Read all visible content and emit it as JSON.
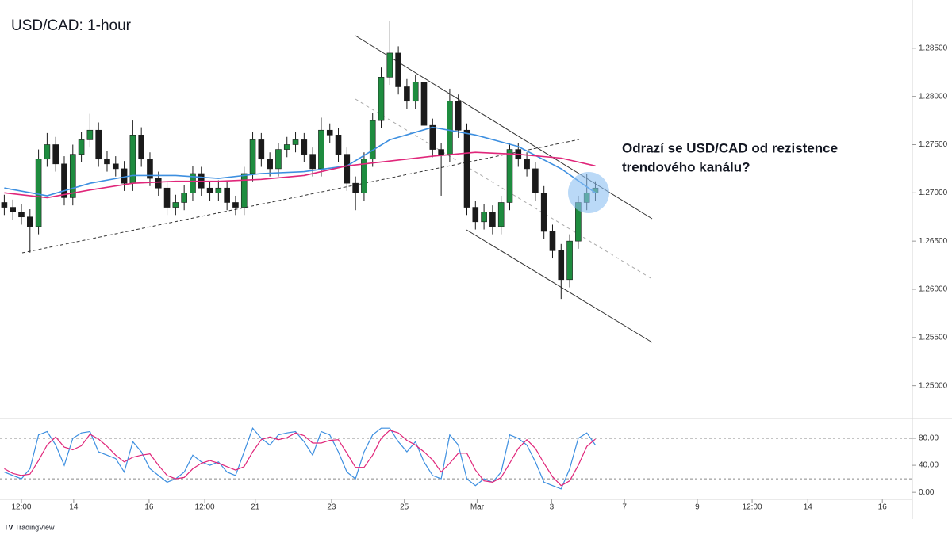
{
  "chart_data": {
    "type": "candlestick",
    "title": "USD/CAD: 1-hour",
    "annotation": [
      "Odrazí se USD/CAD od rezistence",
      "trendového kanálu?"
    ],
    "branding": "TradingView",
    "up_color": "#1e8c3f",
    "down_color": "#1a1a1a",
    "open": [
      1.269,
      1.2685,
      1.268,
      1.2675,
      1.2665,
      1.2735,
      1.275,
      1.273,
      1.2695,
      1.274,
      1.2755,
      1.2765,
      1.2735,
      1.273,
      1.2725,
      1.271,
      1.276,
      1.2735,
      1.2715,
      1.2705,
      1.2685,
      1.269,
      1.27,
      1.272,
      1.2705,
      1.27,
      1.2705,
      1.269,
      1.2685,
      1.272,
      1.2755,
      1.2735,
      1.2725,
      1.2745,
      1.275,
      1.2755,
      1.274,
      1.2725,
      1.2765,
      1.276,
      1.274,
      1.271,
      1.27,
      1.2735,
      1.2775,
      1.282,
      1.2845,
      1.281,
      1.2795,
      1.2815,
      1.277,
      1.2745,
      1.274,
      1.2795,
      1.2765,
      1.2685,
      1.267,
      1.268,
      1.2665,
      1.269,
      1.2745,
      1.2735,
      1.2725,
      1.27,
      1.266,
      1.264,
      1.261,
      1.265,
      1.269,
      1.27
    ],
    "high": [
      1.2698,
      1.2693,
      1.2688,
      1.2683,
      1.2745,
      1.2762,
      1.2758,
      1.2738,
      1.275,
      1.2763,
      1.2782,
      1.2773,
      1.2743,
      1.2738,
      1.2733,
      1.2775,
      1.2768,
      1.2742,
      1.2722,
      1.2712,
      1.2698,
      1.2708,
      1.2728,
      1.2727,
      1.2712,
      1.2713,
      1.2712,
      1.2697,
      1.2727,
      1.2763,
      1.2762,
      1.2742,
      1.2752,
      1.2758,
      1.2763,
      1.2762,
      1.2747,
      1.2778,
      1.2772,
      1.2767,
      1.2747,
      1.2717,
      1.2742,
      1.2783,
      1.283,
      1.2878,
      1.2852,
      1.2818,
      1.2822,
      1.2822,
      1.2777,
      1.2752,
      1.2808,
      1.2802,
      1.2772,
      1.2692,
      1.2688,
      1.2687,
      1.2697,
      1.2752,
      1.2752,
      1.2742,
      1.2732,
      1.2707,
      1.2667,
      1.2647,
      1.2657,
      1.2697,
      1.272,
      1.2712
    ],
    "low": [
      1.2677,
      1.2672,
      1.2667,
      1.2638,
      1.2657,
      1.2727,
      1.2722,
      1.2687,
      1.2687,
      1.2732,
      1.2747,
      1.2727,
      1.2722,
      1.2717,
      1.2702,
      1.2702,
      1.2727,
      1.2707,
      1.2697,
      1.2677,
      1.2677,
      1.2682,
      1.2692,
      1.2697,
      1.2692,
      1.2692,
      1.2682,
      1.2677,
      1.2677,
      1.2712,
      1.2727,
      1.2717,
      1.2717,
      1.2737,
      1.2742,
      1.2732,
      1.2717,
      1.2717,
      1.2752,
      1.2732,
      1.2702,
      1.2682,
      1.2692,
      1.2727,
      1.2767,
      1.2812,
      1.2802,
      1.2787,
      1.2787,
      1.2762,
      1.2737,
      1.2697,
      1.2732,
      1.2757,
      1.2677,
      1.2662,
      1.2662,
      1.2657,
      1.2657,
      1.2682,
      1.2727,
      1.2717,
      1.2692,
      1.2652,
      1.2632,
      1.259,
      1.2602,
      1.2642,
      1.2682,
      1.2692
    ],
    "close": [
      1.2685,
      1.268,
      1.2675,
      1.2665,
      1.2735,
      1.275,
      1.273,
      1.2695,
      1.274,
      1.2755,
      1.2765,
      1.2735,
      1.273,
      1.2725,
      1.271,
      1.276,
      1.2735,
      1.2715,
      1.2705,
      1.2685,
      1.269,
      1.27,
      1.272,
      1.2705,
      1.27,
      1.2705,
      1.269,
      1.2685,
      1.272,
      1.2755,
      1.2735,
      1.2725,
      1.2745,
      1.275,
      1.2755,
      1.274,
      1.2725,
      1.2765,
      1.276,
      1.274,
      1.271,
      1.27,
      1.2735,
      1.2775,
      1.282,
      1.2845,
      1.281,
      1.2795,
      1.2815,
      1.277,
      1.2745,
      1.274,
      1.2795,
      1.2765,
      1.2685,
      1.267,
      1.268,
      1.2665,
      1.269,
      1.2745,
      1.2735,
      1.2725,
      1.27,
      1.266,
      1.264,
      1.261,
      1.265,
      1.269,
      1.27,
      1.2705
    ],
    "moving_averages": [
      {
        "color": "#3d8fe0",
        "x": [
          0,
          5,
          10,
          15,
          20,
          25,
          30,
          35,
          40,
          45,
          50,
          55,
          60,
          65,
          69
        ],
        "values": [
          1.2705,
          1.2697,
          1.271,
          1.2718,
          1.2718,
          1.2715,
          1.272,
          1.2722,
          1.2728,
          1.2755,
          1.2768,
          1.276,
          1.2748,
          1.2725,
          1.27
        ]
      },
      {
        "color": "#e0267a",
        "x": [
          0,
          5,
          10,
          15,
          20,
          25,
          30,
          35,
          40,
          45,
          50,
          55,
          60,
          65,
          69
        ],
        "values": [
          1.27,
          1.2695,
          1.2703,
          1.271,
          1.2712,
          1.2712,
          1.2714,
          1.2718,
          1.2728,
          1.2733,
          1.2738,
          1.2742,
          1.274,
          1.2736,
          1.2728
        ]
      }
    ],
    "xlim": [
      -0.5,
      106
    ],
    "xticks": [
      {
        "value": 2.0,
        "label": "12:00"
      },
      {
        "value": 8.1,
        "label": "14"
      },
      {
        "value": 16.9,
        "label": "16"
      },
      {
        "value": 23.4,
        "label": "12:00"
      },
      {
        "value": 29.3,
        "label": "21"
      },
      {
        "value": 38.2,
        "label": "23"
      },
      {
        "value": 46.7,
        "label": "25"
      },
      {
        "value": 55.2,
        "label": "Mar"
      },
      {
        "value": 63.9,
        "label": "3"
      },
      {
        "value": 72.4,
        "label": "7"
      },
      {
        "value": 80.9,
        "label": "9"
      },
      {
        "value": 87.3,
        "label": "12:00"
      },
      {
        "value": 93.8,
        "label": "14"
      },
      {
        "value": 102.5,
        "label": "16"
      }
    ],
    "ylim": [
      1.2466,
      1.29
    ],
    "yticks": [
      {
        "value": 1.25,
        "label": "1.25000"
      },
      {
        "value": 1.255,
        "label": "1.25500"
      },
      {
        "value": 1.26,
        "label": "1.26000"
      },
      {
        "value": 1.265,
        "label": "1.26500"
      },
      {
        "value": 1.27,
        "label": "1.27000"
      },
      {
        "value": 1.275,
        "label": "1.27500"
      },
      {
        "value": 1.28,
        "label": "1.28000"
      },
      {
        "value": 1.285,
        "label": "1.28500"
      }
    ],
    "oscillator": {
      "ylim": [
        -8,
        107
      ],
      "yticks": [
        {
          "value": 80,
          "label": "80.00"
        },
        {
          "value": 40,
          "label": "40.00"
        },
        {
          "value": 0,
          "label": "0.00"
        }
      ],
      "levels": [
        80,
        20
      ],
      "series": [
        {
          "color": "#3d8fe0",
          "values": [
            30,
            25,
            20,
            35,
            85,
            90,
            70,
            40,
            80,
            88,
            90,
            60,
            55,
            50,
            30,
            75,
            60,
            35,
            25,
            15,
            20,
            30,
            55,
            45,
            40,
            45,
            30,
            25,
            60,
            95,
            80,
            70,
            85,
            88,
            90,
            75,
            55,
            90,
            85,
            60,
            30,
            20,
            60,
            85,
            95,
            95,
            75,
            60,
            75,
            45,
            25,
            20,
            85,
            70,
            20,
            10,
            20,
            15,
            30,
            85,
            80,
            70,
            45,
            15,
            10,
            5,
            35,
            80,
            88,
            70
          ]
        },
        {
          "color": "#e0267a",
          "values": [
            35,
            28,
            25,
            27,
            47,
            70,
            82,
            67,
            63,
            69,
            86,
            79,
            68,
            55,
            45,
            52,
            55,
            57,
            40,
            25,
            20,
            22,
            35,
            43,
            47,
            43,
            38,
            33,
            38,
            60,
            78,
            82,
            78,
            81,
            88,
            84,
            73,
            73,
            77,
            78,
            58,
            37,
            37,
            55,
            80,
            92,
            88,
            77,
            70,
            60,
            48,
            30,
            43,
            58,
            58,
            33,
            17,
            15,
            22,
            43,
            65,
            78,
            65,
            43,
            23,
            10,
            17,
            40,
            68,
            79
          ]
        }
      ]
    }
  }
}
